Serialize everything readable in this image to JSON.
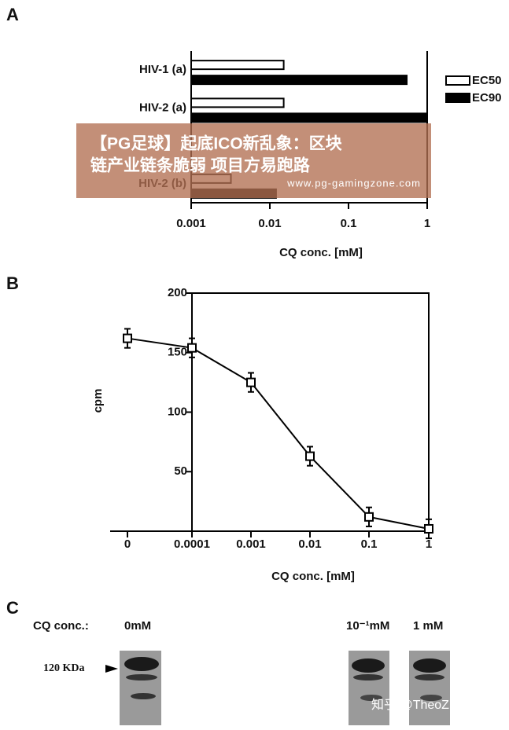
{
  "panel_labels": [
    "A",
    "B",
    "C"
  ],
  "chart_data": [
    {
      "type": "hbar",
      "categories": [
        "HIV-1 (a)",
        "HIV-2 (a)",
        null,
        "HIV-2 (b)"
      ],
      "series": [
        {
          "name": "EC50",
          "color": "#ffffff",
          "values": [
            0.015,
            0.015,
            null,
            0.0032
          ]
        },
        {
          "name": "EC90",
          "color": "#000000",
          "values": [
            0.55,
            1,
            null,
            0.012
          ]
        }
      ],
      "xscale": "log",
      "xlim": [
        0.001,
        1
      ],
      "xticks": [
        0.001,
        0.01,
        0.1,
        1
      ],
      "x_label": "CQ conc. [mM]"
    },
    {
      "type": "line",
      "categories": [
        "0",
        "0.0001",
        "0.001",
        "0.01",
        "0.1",
        "1"
      ],
      "values": [
        162,
        154,
        125,
        63,
        12,
        2
      ],
      "errors": [
        8,
        8,
        8,
        8,
        8,
        8
      ],
      "color": "#000000",
      "ylim": [
        0,
        200
      ],
      "yticks": [
        50,
        100,
        150,
        200
      ],
      "y_label": "cpm",
      "x_label": "CQ conc. [mM]"
    }
  ],
  "blot": {
    "label": "CQ conc.:",
    "lanes": [
      "0mM",
      "10⁻¹mM",
      "1 mM"
    ],
    "marker": "120 KDa"
  },
  "watermark": {
    "title": [
      "【PG足球】起底ICO新乱象：区块",
      "链产业链条脆弱 项目方易跑路"
    ],
    "url": "www.pg-gamingzone.com",
    "credit": "知乎 @TheoZheng"
  }
}
